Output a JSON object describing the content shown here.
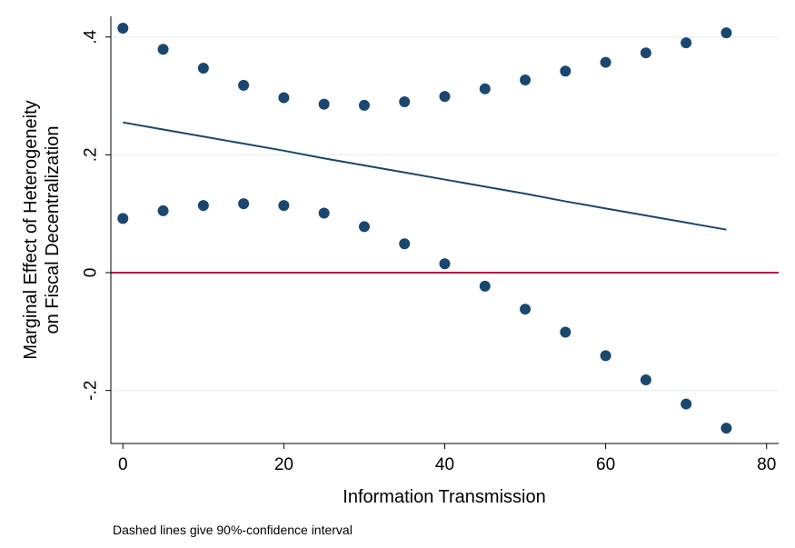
{
  "chart_data": {
    "type": "line",
    "title": "",
    "xlabel": "Information Transmission",
    "ylabel_lines": [
      "Marginal Effect of Heterogeneity",
      "on Fiscal Decentralization"
    ],
    "note": "Dashed lines give 90%-confidence interval",
    "xlim": [
      -1.5,
      81.5
    ],
    "ylim": [
      -0.29,
      0.435
    ],
    "x_ticks": [
      0,
      20,
      40,
      60,
      80
    ],
    "x_tick_labels": [
      "0",
      "20",
      "40",
      "60",
      "80"
    ],
    "y_ticks": [
      -0.2,
      0,
      0.2,
      0.4
    ],
    "y_tick_labels": [
      "-.2",
      "0",
      ".2",
      ".4"
    ],
    "grid": true,
    "x": [
      0,
      5,
      10,
      15,
      20,
      25,
      30,
      35,
      40,
      45,
      50,
      55,
      60,
      65,
      70,
      75
    ],
    "series": [
      {
        "role": "upper_ci",
        "style": "points",
        "color": "#1a476f",
        "values": [
          0.415,
          0.379,
          0.347,
          0.318,
          0.297,
          0.286,
          0.284,
          0.29,
          0.299,
          0.312,
          0.327,
          0.342,
          0.357,
          0.373,
          0.39,
          0.407
        ]
      },
      {
        "role": "marginal_effect",
        "style": "line",
        "color": "#1a476f",
        "values": [
          0.255,
          0.243,
          0.231,
          0.219,
          0.207,
          0.194,
          0.182,
          0.17,
          0.158,
          0.146,
          0.134,
          0.121,
          0.109,
          0.097,
          0.085,
          0.073
        ]
      },
      {
        "role": "lower_ci",
        "style": "points",
        "color": "#1a476f",
        "values": [
          0.092,
          0.105,
          0.114,
          0.117,
          0.114,
          0.101,
          0.078,
          0.049,
          0.015,
          -0.023,
          -0.062,
          -0.101,
          -0.141,
          -0.182,
          -0.223,
          -0.264
        ]
      }
    ],
    "reference_line": {
      "y": 0,
      "color": "#b01c42"
    },
    "colors": {
      "grid": "#eaf2f3",
      "axis": "#000000"
    }
  }
}
